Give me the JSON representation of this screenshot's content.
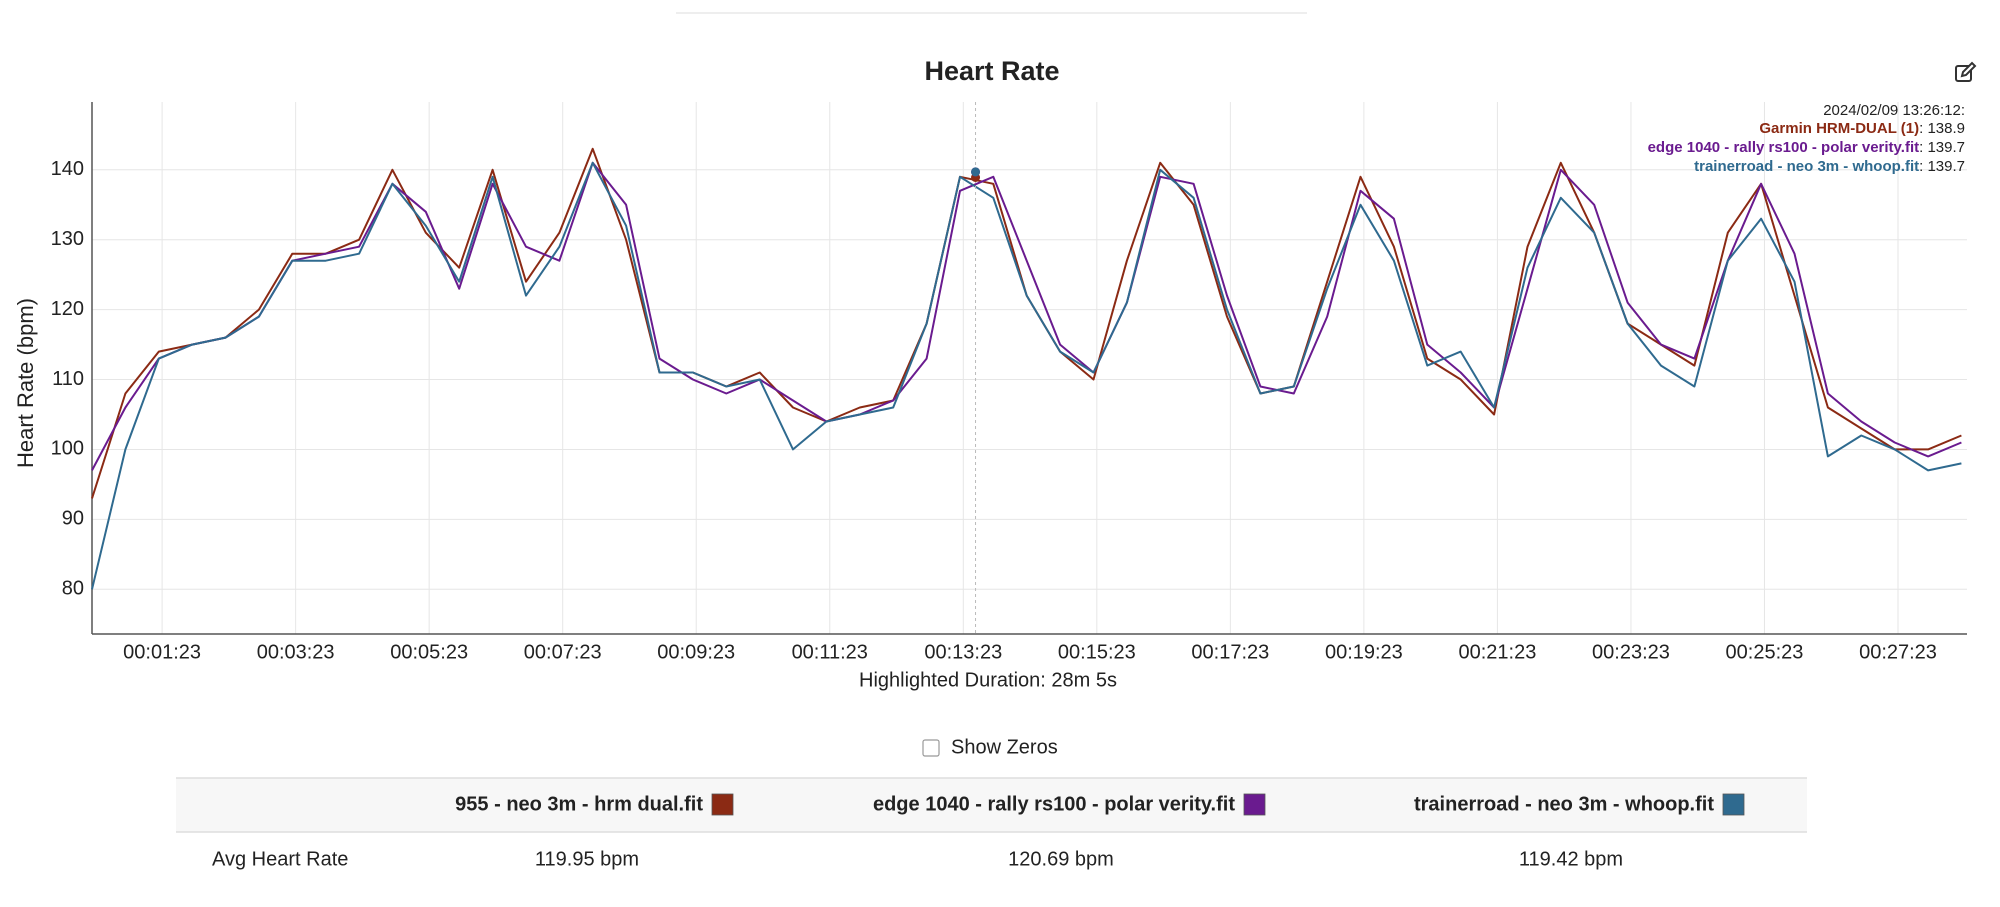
{
  "chart_data": {
    "type": "line",
    "title": "Heart Rate",
    "y_label": "Heart Rate (bpm)",
    "x_label": "Highlighted Duration: 28m 5s",
    "grid": true,
    "xlim": [
      20,
      1705
    ],
    "xticks": [
      {
        "value": 83,
        "label": "00:01:23"
      },
      {
        "value": 203,
        "label": "00:03:23"
      },
      {
        "value": 323,
        "label": "00:05:23"
      },
      {
        "value": 443,
        "label": "00:07:23"
      },
      {
        "value": 563,
        "label": "00:09:23"
      },
      {
        "value": 683,
        "label": "00:11:23"
      },
      {
        "value": 803,
        "label": "00:13:23"
      },
      {
        "value": 923,
        "label": "00:15:23"
      },
      {
        "value": 1043,
        "label": "00:17:23"
      },
      {
        "value": 1163,
        "label": "00:19:23"
      },
      {
        "value": 1283,
        "label": "00:21:23"
      },
      {
        "value": 1403,
        "label": "00:23:23"
      },
      {
        "value": 1523,
        "label": "00:25:23"
      },
      {
        "value": 1643,
        "label": "00:27:23"
      }
    ],
    "ylim": [
      73.6,
      149.7
    ],
    "yticks": [
      80,
      90,
      100,
      110,
      120,
      130,
      140
    ],
    "x": [
      20,
      50,
      80,
      110,
      140,
      170,
      200,
      230,
      260,
      290,
      320,
      350,
      380,
      410,
      440,
      470,
      500,
      530,
      560,
      590,
      620,
      650,
      680,
      710,
      740,
      770,
      800,
      830,
      860,
      890,
      920,
      950,
      980,
      1010,
      1040,
      1070,
      1100,
      1130,
      1160,
      1190,
      1220,
      1250,
      1280,
      1310,
      1340,
      1370,
      1400,
      1430,
      1460,
      1490,
      1520,
      1550,
      1580,
      1610,
      1640,
      1670,
      1700
    ],
    "series": [
      {
        "name": "955 - neo 3m - hrm dual.fit",
        "color": "#8b2a14",
        "values": [
          93,
          108,
          114,
          115,
          116,
          120,
          128,
          128,
          130,
          140,
          131,
          126,
          140,
          124,
          131,
          143,
          130,
          111,
          111,
          109,
          111,
          106,
          104,
          106,
          107,
          118,
          139,
          138,
          122,
          114,
          110,
          127,
          141,
          135,
          119,
          108,
          109,
          124,
          139,
          129,
          113,
          110,
          105,
          129,
          141,
          131,
          118,
          115,
          112,
          131,
          138,
          122,
          106,
          103,
          100,
          100,
          102
        ]
      },
      {
        "name": "edge 1040 - rally rs100 - polar verity.fit",
        "color": "#6a1b8f",
        "values": [
          97,
          106,
          113,
          115,
          116,
          119,
          127,
          128,
          129,
          138,
          134,
          123,
          138,
          129,
          127,
          141,
          135,
          113,
          110,
          108,
          110,
          107,
          104,
          105,
          107,
          113,
          137,
          139,
          127,
          115,
          111,
          121,
          139,
          138,
          122,
          109,
          108,
          119,
          137,
          133,
          115,
          111,
          106,
          123,
          140,
          135,
          121,
          115,
          113,
          127,
          138,
          128,
          108,
          104,
          101,
          99,
          101
        ]
      },
      {
        "name": "trainerroad - neo 3m - whoop.fit",
        "color": "#2f6a8f",
        "values": [
          80,
          100,
          113,
          115,
          116,
          119,
          127,
          127,
          128,
          138,
          132,
          124,
          139,
          122,
          129,
          141,
          132,
          111,
          111,
          109,
          110,
          100,
          104,
          105,
          106,
          118,
          139,
          136,
          122,
          114,
          111,
          121,
          140,
          136,
          120,
          108,
          109,
          123,
          135,
          127,
          112,
          114,
          106,
          126,
          136,
          131,
          118,
          112,
          109,
          127,
          133,
          124,
          99,
          102,
          100,
          97,
          98
        ]
      }
    ],
    "tooltip": {
      "time": "2024/02/09 13:26:12:",
      "x": 814,
      "items": [
        {
          "name": "Garmin HRM-DUAL (1)",
          "value": 138.9,
          "value_label": ": 138.9"
        },
        {
          "name": "edge 1040 - rally rs100 - polar verity.fit",
          "value": 139.7,
          "value_label": ": 139.7"
        },
        {
          "name": "trainerroad - neo 3m - whoop.fit",
          "value": 139.7,
          "value_label": ": 139.7"
        }
      ]
    }
  },
  "controls": {
    "show_zeros": {
      "label": "Show Zeros",
      "checked": false
    }
  },
  "table": {
    "rows": [
      {
        "label": "Avg Heart Rate",
        "cells": [
          "119.95 bpm",
          "120.69 bpm",
          "119.42 bpm"
        ]
      }
    ]
  }
}
